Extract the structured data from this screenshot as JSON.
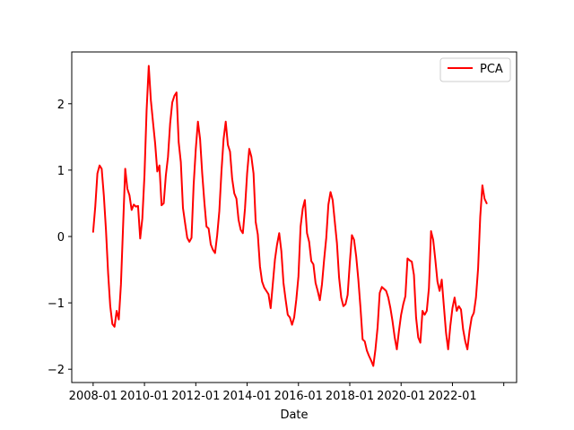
{
  "chart_data": {
    "type": "line",
    "title": "",
    "xlabel": "Date",
    "ylabel": "",
    "x_tick_labels": [
      "2008-01",
      "2010-01",
      "2012-01",
      "2014-01",
      "2016-01",
      "2018-01",
      "2020-01",
      "2022-01",
      ""
    ],
    "y_ticks": [
      -2,
      -1,
      0,
      1,
      2
    ],
    "y_tick_labels": [
      "−2",
      "−1",
      "0",
      "1",
      "2"
    ],
    "x_range": [
      "2007-03",
      "2024-07"
    ],
    "ylim": [
      -2.2,
      2.78
    ],
    "grid": false,
    "legend": {
      "placement": "top-right",
      "entries": [
        "PCA"
      ]
    },
    "series": [
      {
        "name": "PCA",
        "color": "#ff0000",
        "points": [
          [
            "2008-01",
            0.07
          ],
          [
            "2008-02",
            0.45
          ],
          [
            "2008-03",
            0.95
          ],
          [
            "2008-04",
            1.07
          ],
          [
            "2008-05",
            1.02
          ],
          [
            "2008-06",
            0.62
          ],
          [
            "2008-07",
            0.1
          ],
          [
            "2008-08",
            -0.55
          ],
          [
            "2008-09",
            -1.05
          ],
          [
            "2008-10",
            -1.32
          ],
          [
            "2008-11",
            -1.36
          ],
          [
            "2008-12",
            -1.12
          ],
          [
            "2009-01",
            -1.25
          ],
          [
            "2009-02",
            -0.72
          ],
          [
            "2009-03",
            0.15
          ],
          [
            "2009-04",
            1.02
          ],
          [
            "2009-05",
            0.72
          ],
          [
            "2009-06",
            0.62
          ],
          [
            "2009-07",
            0.4
          ],
          [
            "2009-08",
            0.48
          ],
          [
            "2009-09",
            0.45
          ],
          [
            "2009-10",
            0.46
          ],
          [
            "2009-11",
            -0.03
          ],
          [
            "2009-12",
            0.27
          ],
          [
            "2010-01",
            0.92
          ],
          [
            "2010-02",
            1.9
          ],
          [
            "2010-03",
            2.57
          ],
          [
            "2010-04",
            2.05
          ],
          [
            "2010-05",
            1.72
          ],
          [
            "2010-06",
            1.4
          ],
          [
            "2010-07",
            0.98
          ],
          [
            "2010-08",
            1.07
          ],
          [
            "2010-09",
            0.47
          ],
          [
            "2010-10",
            0.5
          ],
          [
            "2010-11",
            0.92
          ],
          [
            "2010-12",
            1.2
          ],
          [
            "2011-01",
            1.7
          ],
          [
            "2011-02",
            2.02
          ],
          [
            "2011-03",
            2.12
          ],
          [
            "2011-04",
            2.17
          ],
          [
            "2011-05",
            1.42
          ],
          [
            "2011-06",
            1.12
          ],
          [
            "2011-07",
            0.43
          ],
          [
            "2011-08",
            0.2
          ],
          [
            "2011-09",
            -0.02
          ],
          [
            "2011-10",
            -0.08
          ],
          [
            "2011-11",
            -0.02
          ],
          [
            "2011-12",
            0.78
          ],
          [
            "2012-01",
            1.32
          ],
          [
            "2012-02",
            1.73
          ],
          [
            "2012-03",
            1.47
          ],
          [
            "2012-04",
            0.95
          ],
          [
            "2012-05",
            0.52
          ],
          [
            "2012-06",
            0.15
          ],
          [
            "2012-07",
            0.12
          ],
          [
            "2012-08",
            -0.12
          ],
          [
            "2012-09",
            -0.2
          ],
          [
            "2012-10",
            -0.25
          ],
          [
            "2012-11",
            0.02
          ],
          [
            "2012-12",
            0.38
          ],
          [
            "2013-01",
            0.98
          ],
          [
            "2013-02",
            1.47
          ],
          [
            "2013-03",
            1.73
          ],
          [
            "2013-04",
            1.38
          ],
          [
            "2013-05",
            1.28
          ],
          [
            "2013-06",
            0.87
          ],
          [
            "2013-07",
            0.65
          ],
          [
            "2013-08",
            0.57
          ],
          [
            "2013-09",
            0.25
          ],
          [
            "2013-10",
            0.1
          ],
          [
            "2013-11",
            0.05
          ],
          [
            "2013-12",
            0.42
          ],
          [
            "2014-01",
            0.95
          ],
          [
            "2014-02",
            1.32
          ],
          [
            "2014-03",
            1.2
          ],
          [
            "2014-04",
            0.95
          ],
          [
            "2014-05",
            0.22
          ],
          [
            "2014-06",
            0.03
          ],
          [
            "2014-07",
            -0.45
          ],
          [
            "2014-08",
            -0.68
          ],
          [
            "2014-09",
            -0.77
          ],
          [
            "2014-10",
            -0.82
          ],
          [
            "2014-11",
            -0.87
          ],
          [
            "2014-12",
            -1.08
          ],
          [
            "2015-01",
            -0.72
          ],
          [
            "2015-02",
            -0.35
          ],
          [
            "2015-03",
            -0.12
          ],
          [
            "2015-04",
            0.05
          ],
          [
            "2015-05",
            -0.22
          ],
          [
            "2015-06",
            -0.7
          ],
          [
            "2015-07",
            -0.95
          ],
          [
            "2015-08",
            -1.18
          ],
          [
            "2015-09",
            -1.22
          ],
          [
            "2015-10",
            -1.33
          ],
          [
            "2015-11",
            -1.22
          ],
          [
            "2015-12",
            -0.95
          ],
          [
            "2016-01",
            -0.6
          ],
          [
            "2016-02",
            0.15
          ],
          [
            "2016-03",
            0.42
          ],
          [
            "2016-04",
            0.55
          ],
          [
            "2016-05",
            0.05
          ],
          [
            "2016-06",
            -0.08
          ],
          [
            "2016-07",
            -0.37
          ],
          [
            "2016-08",
            -0.42
          ],
          [
            "2016-09",
            -0.7
          ],
          [
            "2016-10",
            -0.82
          ],
          [
            "2016-11",
            -0.96
          ],
          [
            "2016-12",
            -0.72
          ],
          [
            "2017-01",
            -0.35
          ],
          [
            "2017-02",
            -0.02
          ],
          [
            "2017-03",
            0.48
          ],
          [
            "2017-04",
            0.67
          ],
          [
            "2017-05",
            0.55
          ],
          [
            "2017-06",
            0.22
          ],
          [
            "2017-07",
            -0.1
          ],
          [
            "2017-08",
            -0.62
          ],
          [
            "2017-09",
            -0.92
          ],
          [
            "2017-10",
            -1.05
          ],
          [
            "2017-11",
            -1.02
          ],
          [
            "2017-12",
            -0.88
          ],
          [
            "2018-01",
            -0.4
          ],
          [
            "2018-02",
            0.02
          ],
          [
            "2018-03",
            -0.05
          ],
          [
            "2018-04",
            -0.3
          ],
          [
            "2018-05",
            -0.65
          ],
          [
            "2018-06",
            -1.07
          ],
          [
            "2018-07",
            -1.55
          ],
          [
            "2018-08",
            -1.58
          ],
          [
            "2018-09",
            -1.72
          ],
          [
            "2018-10",
            -1.8
          ],
          [
            "2018-11",
            -1.87
          ],
          [
            "2018-12",
            -1.95
          ],
          [
            "2019-01",
            -1.7
          ],
          [
            "2019-02",
            -1.37
          ],
          [
            "2019-03",
            -0.85
          ],
          [
            "2019-04",
            -0.76
          ],
          [
            "2019-05",
            -0.79
          ],
          [
            "2019-06",
            -0.82
          ],
          [
            "2019-07",
            -0.92
          ],
          [
            "2019-08",
            -1.08
          ],
          [
            "2019-09",
            -1.28
          ],
          [
            "2019-10",
            -1.52
          ],
          [
            "2019-11",
            -1.7
          ],
          [
            "2019-12",
            -1.42
          ],
          [
            "2020-01",
            -1.18
          ],
          [
            "2020-02",
            -1.02
          ],
          [
            "2020-03",
            -0.9
          ],
          [
            "2020-04",
            -0.33
          ],
          [
            "2020-05",
            -0.36
          ],
          [
            "2020-06",
            -0.38
          ],
          [
            "2020-07",
            -0.58
          ],
          [
            "2020-08",
            -1.22
          ],
          [
            "2020-09",
            -1.52
          ],
          [
            "2020-10",
            -1.6
          ],
          [
            "2020-11",
            -1.12
          ],
          [
            "2020-12",
            -1.18
          ],
          [
            "2021-01",
            -1.12
          ],
          [
            "2021-02",
            -0.78
          ],
          [
            "2021-03",
            0.08
          ],
          [
            "2021-04",
            -0.05
          ],
          [
            "2021-05",
            -0.35
          ],
          [
            "2021-06",
            -0.68
          ],
          [
            "2021-07",
            -0.82
          ],
          [
            "2021-08",
            -0.65
          ],
          [
            "2021-09",
            -1.05
          ],
          [
            "2021-10",
            -1.45
          ],
          [
            "2021-11",
            -1.7
          ],
          [
            "2021-12",
            -1.35
          ],
          [
            "2022-01",
            -1.08
          ],
          [
            "2022-02",
            -0.92
          ],
          [
            "2022-03",
            -1.12
          ],
          [
            "2022-04",
            -1.05
          ],
          [
            "2022-05",
            -1.1
          ],
          [
            "2022-06",
            -1.4
          ],
          [
            "2022-07",
            -1.58
          ],
          [
            "2022-08",
            -1.7
          ],
          [
            "2022-09",
            -1.42
          ],
          [
            "2022-10",
            -1.22
          ],
          [
            "2022-11",
            -1.15
          ],
          [
            "2022-12",
            -0.92
          ],
          [
            "2023-01",
            -0.48
          ],
          [
            "2023-02",
            0.3
          ],
          [
            "2023-03",
            0.77
          ],
          [
            "2023-04",
            0.57
          ],
          [
            "2023-05",
            0.5
          ]
        ]
      }
    ]
  }
}
